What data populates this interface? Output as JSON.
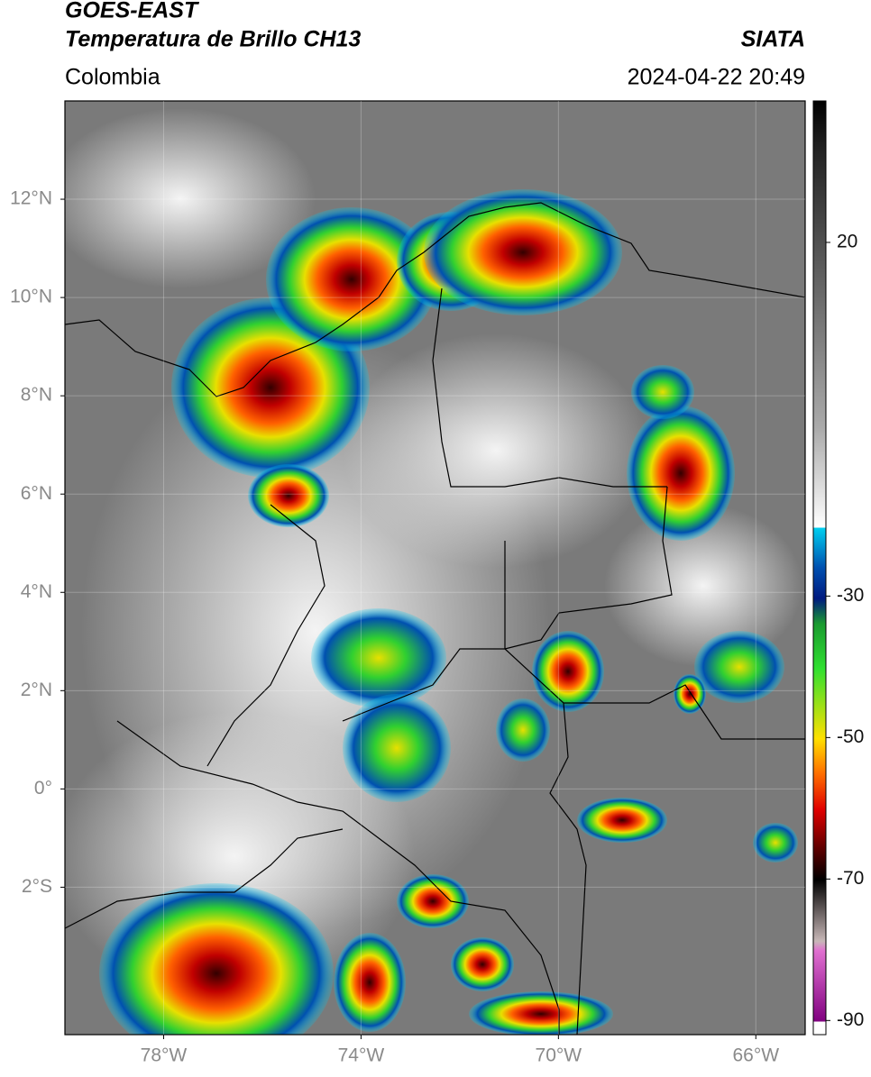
{
  "header": {
    "title_line1": "GOES-EAST",
    "title_line2": "Temperatura de Brillo CH13",
    "source": "SIATA",
    "region": "Colombia",
    "datetime": "2024-04-22 20:49"
  },
  "map": {
    "xlim": [
      -80,
      -65
    ],
    "ylim": [
      -5,
      14
    ],
    "xticks": [
      {
        "value": -78,
        "label": "78°W"
      },
      {
        "value": -74,
        "label": "74°W"
      },
      {
        "value": -70,
        "label": "70°W"
      },
      {
        "value": -66,
        "label": "66°W"
      }
    ],
    "yticks": [
      {
        "value": 12,
        "label": "12°N"
      },
      {
        "value": 10,
        "label": "10°N"
      },
      {
        "value": 8,
        "label": "8°N"
      },
      {
        "value": 6,
        "label": "6°N"
      },
      {
        "value": 4,
        "label": "4°N"
      },
      {
        "value": 2,
        "label": "2°N"
      },
      {
        "value": 0,
        "label": "0°"
      },
      {
        "value": -2,
        "label": "2°S"
      }
    ],
    "grid": true
  },
  "colorbar": {
    "lim": [
      -92,
      40
    ],
    "ticks": [
      20,
      -30,
      -50,
      -70,
      -90
    ]
  }
}
